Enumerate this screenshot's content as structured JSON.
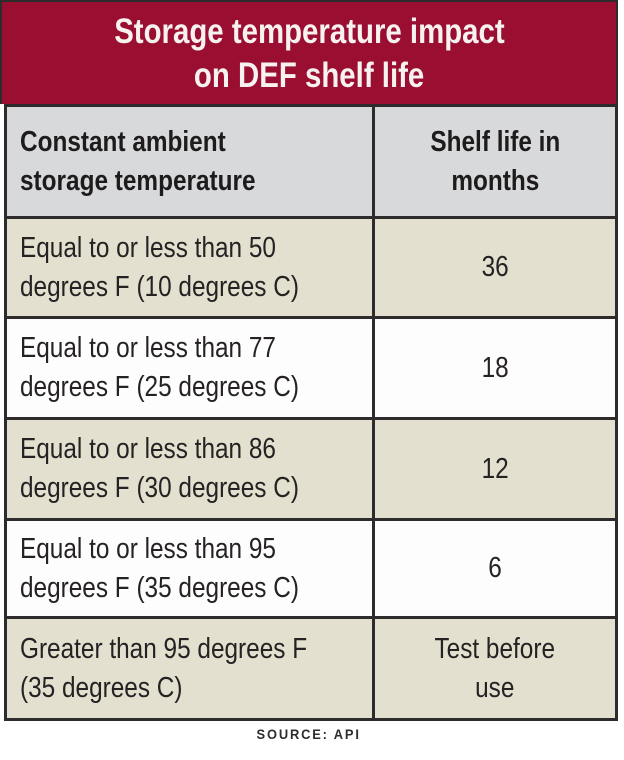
{
  "title": {
    "line1": "Storage temperature impact",
    "line2": "on DEF shelf life"
  },
  "table": {
    "header": {
      "temperature": "Constant ambient\nstorage temperature",
      "shelf_life": "Shelf life in\nmonths"
    },
    "rows": [
      {
        "temperature": "Equal to or less than 50\ndegrees F (10 degrees C)",
        "shelf_life": "36"
      },
      {
        "temperature": "Equal to or less than 77\ndegrees F (25 degrees C)",
        "shelf_life": "18"
      },
      {
        "temperature": "Equal to or less than 86\ndegrees F (30 degrees C)",
        "shelf_life": "12"
      },
      {
        "temperature": "Equal to or less than 95\ndegrees F (35 degrees C)",
        "shelf_life": "6"
      },
      {
        "temperature": "Greater than 95 degrees F\n(35 degrees C)",
        "shelf_life": "Test before\nuse"
      }
    ]
  },
  "source": "SOURCE: API",
  "colors": {
    "banner_bg": "#9a0e31",
    "banner_text": "#f7f2ef",
    "header_row_bg": "#d8d9db",
    "shaded_row_bg": "#e3e0cf",
    "plain_row_bg": "#fdfdfd",
    "border": "#2d2b2c",
    "text": "#262223"
  },
  "chart_data": {
    "type": "table",
    "title": "Storage temperature impact on DEF shelf life",
    "columns": [
      "Constant ambient storage temperature",
      "Shelf life in months"
    ],
    "rows": [
      [
        "Equal to or less than 50 degrees F (10 degrees C)",
        "36"
      ],
      [
        "Equal to or less than 77 degrees F (25 degrees C)",
        "18"
      ],
      [
        "Equal to or less than 86 degrees F (30 degrees C)",
        "12"
      ],
      [
        "Equal to or less than 95 degrees F (35 degrees C)",
        "6"
      ],
      [
        "Greater than 95 degrees F (35 degrees C)",
        "Test before use"
      ]
    ],
    "shelf_life_months": [
      36,
      18,
      12,
      6,
      null
    ],
    "source": "SOURCE: API"
  }
}
